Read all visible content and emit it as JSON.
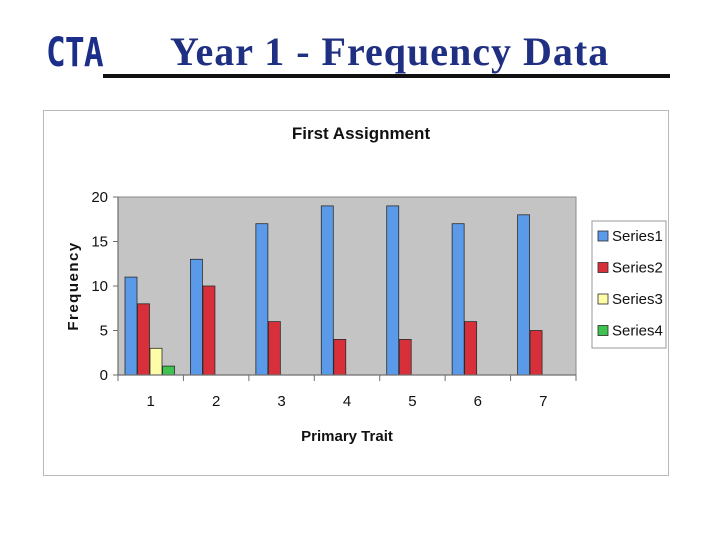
{
  "header": {
    "logo_text": "CTA",
    "title": "Year 1 - Frequency  Data"
  },
  "chart_data": {
    "type": "bar",
    "title": "First Assignment",
    "xlabel": "Primary Trait",
    "ylabel": "Frequency",
    "ylim": [
      0,
      20
    ],
    "yticks": [
      0,
      5,
      10,
      15,
      20
    ],
    "grid": false,
    "legend": "right",
    "categories": [
      "1",
      "2",
      "3",
      "4",
      "5",
      "6",
      "7"
    ],
    "series": [
      {
        "name": "Series1",
        "values": [
          11,
          13,
          17,
          19,
          19,
          17,
          18
        ],
        "color": "#5a9ae8"
      },
      {
        "name": "Series2",
        "values": [
          8,
          10,
          6,
          4,
          4,
          6,
          5
        ],
        "color": "#d8303a"
      },
      {
        "name": "Series3",
        "values": [
          3,
          null,
          null,
          null,
          null,
          null,
          null
        ],
        "color": "#fdfca8"
      },
      {
        "name": "Series4",
        "values": [
          1,
          null,
          null,
          null,
          null,
          null,
          null
        ],
        "color": "#3fc24f"
      }
    ],
    "colors": {
      "plot_bg": "#c4c4c4",
      "axis": "#6f6f6f"
    }
  }
}
